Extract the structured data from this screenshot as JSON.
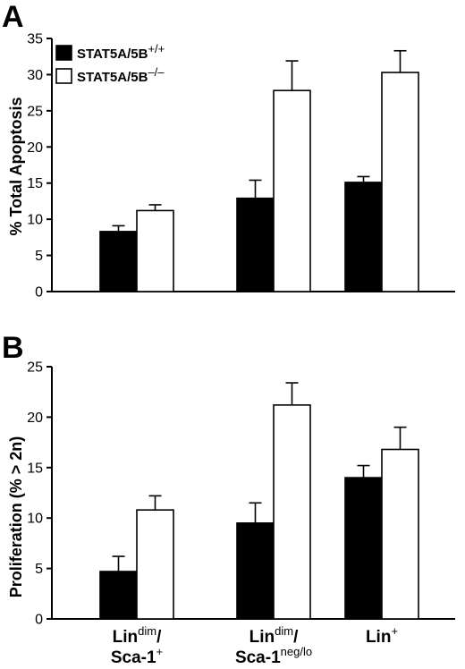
{
  "chart_data": [
    {
      "panel": "A",
      "type": "bar",
      "ylabel": "% Total Apoptosis",
      "ylim": [
        0,
        35
      ],
      "yticks": [
        "0",
        "5",
        "10",
        "15",
        "20",
        "25",
        "30",
        "35"
      ],
      "legend": {
        "placement": "top-left",
        "entries": [
          {
            "base": "STAT5A/5B",
            "sup": "+/+",
            "color": "#000000"
          },
          {
            "base": "STAT5A/5B",
            "sup": "–/–",
            "color": "#ffffff"
          }
        ]
      },
      "series": [
        {
          "values": [
            8.3,
            12.9,
            15.1
          ],
          "errors": [
            0.8,
            2.5,
            0.8
          ],
          "color": "#000000"
        },
        {
          "values": [
            11.2,
            27.8,
            30.3
          ],
          "errors": [
            0.8,
            4.1,
            3.0
          ],
          "color": "#ffffff"
        }
      ]
    },
    {
      "panel": "B",
      "type": "bar",
      "ylabel": "Proliferation (% > 2n)",
      "ylim": [
        0,
        25
      ],
      "yticks": [
        "0",
        "5",
        "10",
        "15",
        "20",
        "25"
      ],
      "categories": [
        {
          "line1": "Lin",
          "line1_sup": "dim",
          "line1_tail": "/",
          "line2": "Sca-1",
          "line2_sup": "+"
        },
        {
          "line1": "Lin",
          "line1_sup": "dim",
          "line1_tail": "/",
          "line2": "Sca-1",
          "line2_sup": "neg/lo"
        },
        {
          "line1": "Lin",
          "line1_sup": "+",
          "line1_tail": "",
          "line2": "",
          "line2_sup": ""
        }
      ],
      "series": [
        {
          "values": [
            4.7,
            9.5,
            14.0
          ],
          "errors": [
            1.5,
            2.0,
            1.2
          ],
          "color": "#000000"
        },
        {
          "values": [
            10.8,
            21.2,
            16.8
          ],
          "errors": [
            1.4,
            2.2,
            2.2
          ],
          "color": "#ffffff"
        }
      ]
    }
  ]
}
